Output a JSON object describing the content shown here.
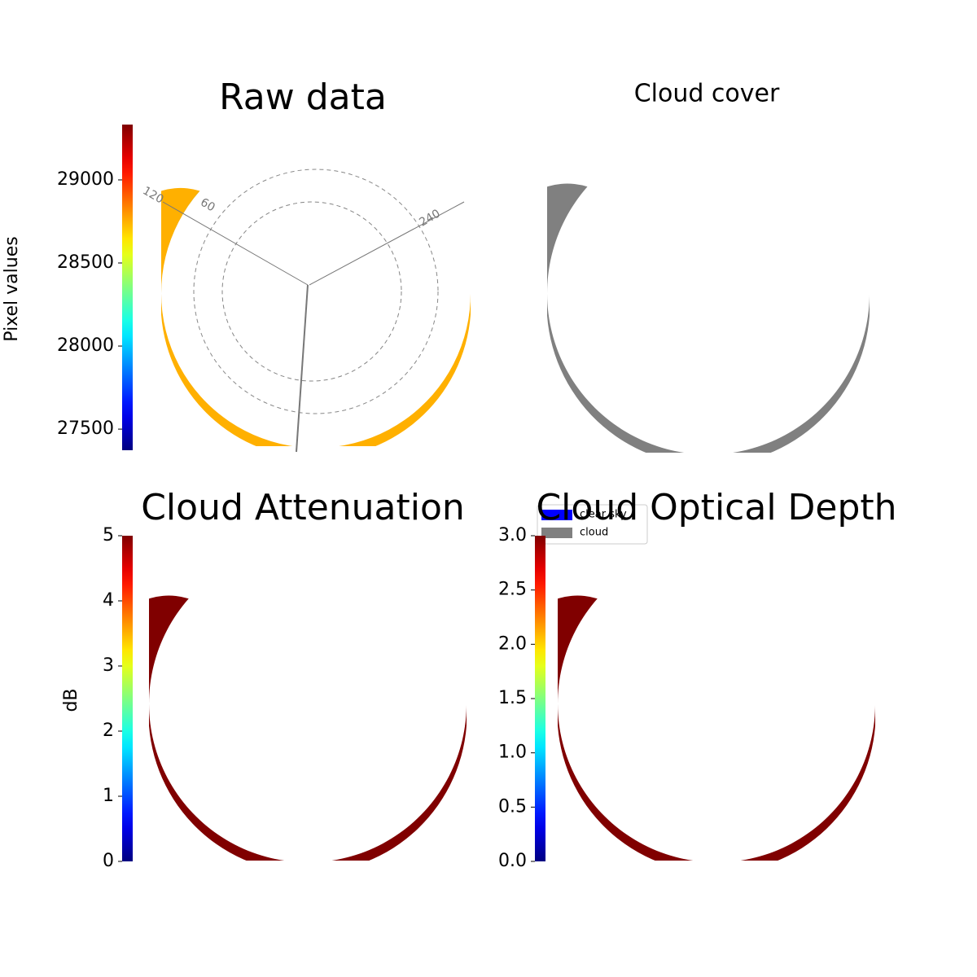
{
  "chart_data": [
    {
      "type": "image",
      "title": "Raw data",
      "colorbar": {
        "label": "Pixel values",
        "colormap": "jet",
        "lim": [
          27373,
          29333
        ],
        "ticks": [
          27500,
          28000,
          28500,
          29000
        ]
      },
      "annotations": [
        "120",
        "60",
        "240"
      ]
    },
    {
      "type": "image",
      "title": "Cloud cover",
      "legend": [
        {
          "name": "clear sky",
          "color": "#0000ff"
        },
        {
          "name": "cloud",
          "color": "#808080"
        }
      ]
    },
    {
      "type": "image",
      "title": "Cloud Attenuation",
      "colorbar": {
        "label": "dB",
        "colormap": "jet",
        "lim": [
          0,
          5
        ],
        "ticks": [
          0,
          1,
          2,
          3,
          4,
          5
        ]
      }
    },
    {
      "type": "image",
      "title": "Cloud Optical Depth",
      "colorbar": {
        "colormap": "jet",
        "lim": [
          0,
          3
        ],
        "ticks": [
          {
            "value": 0,
            "label": "0.0"
          },
          {
            "value": 0.5,
            "label": "0.5"
          },
          {
            "value": 1,
            "label": "1.0"
          },
          {
            "value": 1.5,
            "label": "1.5"
          },
          {
            "value": 2,
            "label": "2.0"
          },
          {
            "value": 2.5,
            "label": "2.5"
          },
          {
            "value": 3,
            "label": "3.0"
          }
        ]
      }
    }
  ]
}
